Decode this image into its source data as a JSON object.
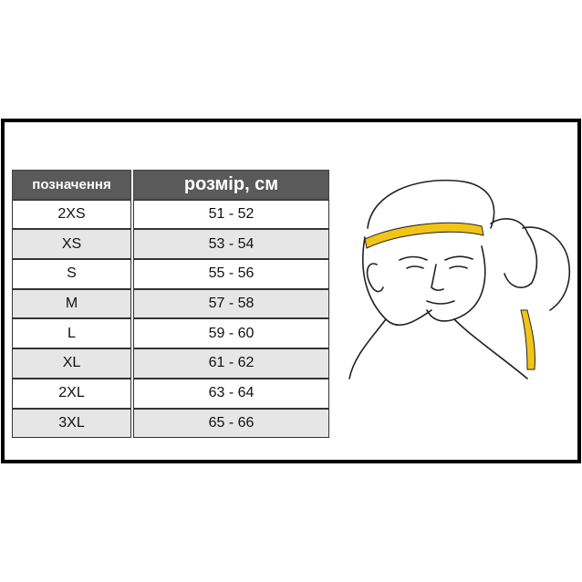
{
  "table": {
    "headers": [
      "позначення",
      "розмір, см"
    ],
    "rows": [
      [
        "2XS",
        "51 - 52"
      ],
      [
        "XS",
        "53 - 54"
      ],
      [
        "S",
        "55 - 56"
      ],
      [
        "M",
        "57 - 58"
      ],
      [
        "L",
        "59 - 60"
      ],
      [
        "XL",
        "61 - 62"
      ],
      [
        "2XL",
        "63 - 64"
      ],
      [
        "3XL",
        "65 - 66"
      ]
    ]
  },
  "colors": {
    "header_bg": "#5a5a5a",
    "alt_row": "#e6e6e6",
    "tape": "#f2c417"
  },
  "illustration": "head-measuring-tape"
}
